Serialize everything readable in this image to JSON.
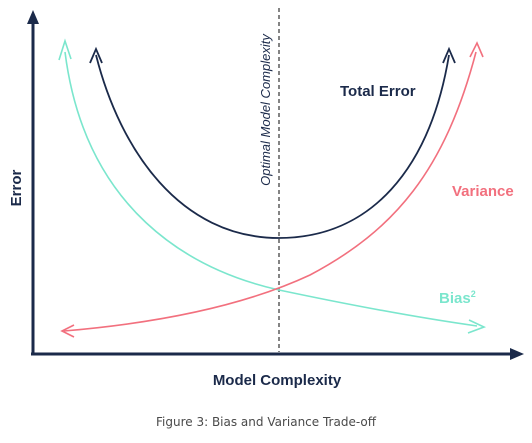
{
  "figure": {
    "y_axis_label": "Error",
    "x_axis_label": "Model Complexity",
    "optimal_label": "Optimal Model Complexity",
    "curves": {
      "total_error": {
        "label": "Total Error",
        "color": "#1b2a4a"
      },
      "variance": {
        "label": "Variance",
        "color": "#f2707e"
      },
      "bias": {
        "label": "Bias",
        "superscript": "2",
        "color": "#7be6cd"
      }
    },
    "caption": "Figure 3: Bias and Variance Trade-off"
  }
}
